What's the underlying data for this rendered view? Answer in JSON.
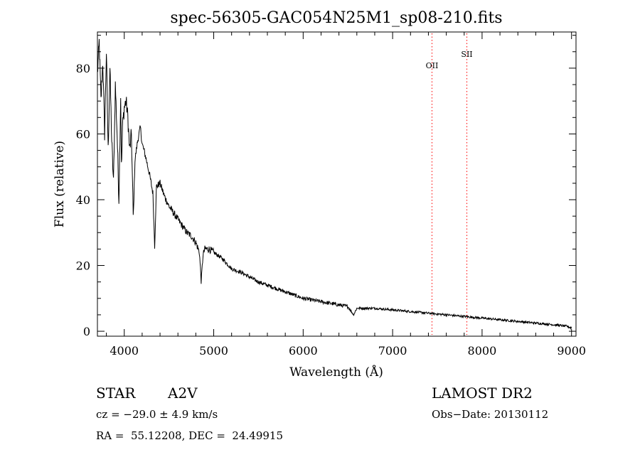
{
  "chart_data": {
    "type": "line",
    "title": "spec-56305-GAC054N25M1_sp08-210.fits",
    "xlabel": "Wavelength (Å)",
    "ylabel": "Flux (relative)",
    "xlim": [
      3700,
      9050
    ],
    "ylim": [
      -1.5,
      91
    ],
    "xticks": [
      4000,
      5000,
      6000,
      7000,
      8000,
      9000
    ],
    "yticks": [
      0,
      20,
      40,
      60,
      80
    ],
    "grid": false,
    "colors": {
      "spectrum": "#000000",
      "lines": "#ff0000"
    },
    "lines": [
      {
        "label": "OII",
        "x": 7440
      },
      {
        "label": "SII",
        "x": 7830
      }
    ],
    "series": [
      {
        "x": [
          3700,
          3720,
          3740,
          3760,
          3780,
          3800,
          3820,
          3840,
          3860,
          3880,
          3900,
          3920,
          3940,
          3960,
          3970,
          3980,
          4000,
          4020,
          4040,
          4060,
          4080,
          4101,
          4120,
          4150,
          4180,
          4200,
          4240,
          4280,
          4320,
          4340,
          4360,
          4400,
          4450,
          4500,
          4550,
          4600,
          4650,
          4700,
          4750,
          4800,
          4840,
          4861,
          4880,
          4900,
          4950,
          5000,
          5100,
          5200,
          5300,
          5400,
          5500,
          5600,
          5700,
          5800,
          5900,
          6000,
          6200,
          6400,
          6500,
          6563,
          6600,
          6800,
          7000,
          7200,
          7400,
          7600,
          7800,
          8000,
          8200,
          8400,
          8600,
          8800,
          8950,
          9000
        ],
        "y": [
          78,
          88,
          70,
          82,
          60,
          85,
          55,
          80,
          58,
          45,
          75,
          60,
          40,
          72,
          48,
          62,
          68,
          70,
          65,
          55,
          60,
          34,
          52,
          58,
          62,
          57,
          53,
          48,
          42,
          26,
          44,
          45,
          41,
          38,
          36,
          34,
          32,
          30,
          29,
          27,
          24,
          15,
          23,
          25,
          25,
          24,
          22,
          19,
          18,
          16.5,
          15,
          14,
          13,
          12,
          11,
          10,
          9,
          8,
          7.5,
          5,
          7,
          7,
          6.5,
          6,
          5.5,
          5,
          4.5,
          4,
          3.5,
          3,
          2.5,
          2,
          1.5,
          1
        ]
      }
    ]
  },
  "info": {
    "object_class": "STAR",
    "subclass": "A2V",
    "cz": "cz = −29.0 ± 4.9 km/s",
    "coords": "RA =  55.12208, DEC =  24.49915",
    "survey": "LAMOST DR2",
    "obs_date": "Obs−Date: 20130112"
  }
}
